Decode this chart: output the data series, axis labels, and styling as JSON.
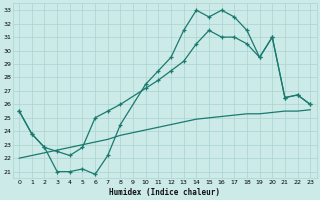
{
  "xlabel": "Humidex (Indice chaleur)",
  "bg_color": "#cceae8",
  "grid_color": "#aad4d0",
  "line_color": "#1a7a6e",
  "x_min": -0.5,
  "x_max": 23.5,
  "y_min": 20.5,
  "y_max": 33.5,
  "x_ticks": [
    0,
    1,
    2,
    3,
    4,
    5,
    6,
    7,
    8,
    9,
    10,
    11,
    12,
    13,
    14,
    15,
    16,
    17,
    18,
    19,
    20,
    21,
    22,
    23
  ],
  "y_ticks": [
    21,
    22,
    23,
    24,
    25,
    26,
    27,
    28,
    29,
    30,
    31,
    32,
    33
  ],
  "line1_x": [
    0,
    1,
    2,
    3,
    4,
    5,
    6,
    7,
    8,
    10,
    11,
    12,
    13,
    14,
    15,
    16,
    17,
    18,
    19,
    20,
    21,
    22,
    23
  ],
  "line1_y": [
    25.5,
    23.8,
    22.8,
    21.0,
    21.0,
    21.2,
    20.8,
    22.2,
    24.5,
    27.5,
    28.5,
    29.5,
    31.5,
    33.0,
    32.5,
    33.0,
    32.5,
    31.5,
    29.5,
    31.0,
    26.5,
    26.7,
    26.0
  ],
  "line2_x": [
    0,
    1,
    2,
    3,
    4,
    5,
    6,
    7,
    8,
    10,
    11,
    12,
    13,
    14,
    15,
    16,
    17,
    18,
    19,
    20,
    21,
    22,
    23
  ],
  "line2_y": [
    25.5,
    23.8,
    22.8,
    22.5,
    22.2,
    22.8,
    25.0,
    25.5,
    26.0,
    27.2,
    27.8,
    28.5,
    29.2,
    30.5,
    31.5,
    31.0,
    31.0,
    30.5,
    29.5,
    31.0,
    26.5,
    26.7,
    26.0
  ],
  "line3_x": [
    0,
    1,
    2,
    3,
    4,
    5,
    6,
    7,
    8,
    9,
    10,
    11,
    12,
    13,
    14,
    15,
    16,
    17,
    18,
    19,
    20,
    21,
    22,
    23
  ],
  "line3_y": [
    22.0,
    22.2,
    22.4,
    22.6,
    22.8,
    23.0,
    23.2,
    23.4,
    23.7,
    23.9,
    24.1,
    24.3,
    24.5,
    24.7,
    24.9,
    25.0,
    25.1,
    25.2,
    25.3,
    25.3,
    25.4,
    25.5,
    25.5,
    25.6
  ]
}
